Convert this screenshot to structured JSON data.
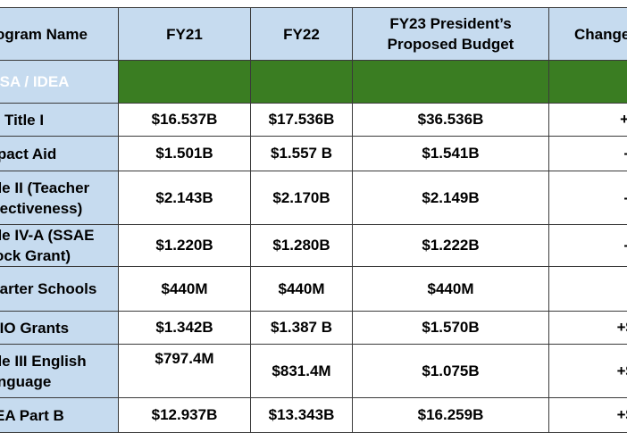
{
  "header": {
    "name": "Program Name",
    "fy21": "FY21",
    "fy22": "FY22",
    "fy23": "FY23 President’s Proposed Budget",
    "change": "Change"
  },
  "section": {
    "label": "ESSA / IDEA"
  },
  "rows": [
    {
      "name": "Title I",
      "fy21": "$16.537B",
      "fy22": "$17.536B",
      "fy23": "$36.536B",
      "change": "+"
    },
    {
      "name": "Impact Aid",
      "fy21": "$1.501B",
      "fy22": "$1.557 B",
      "fy23": "$1.541B",
      "change": "-"
    },
    {
      "name": "Title II (Teacher Effectiveness)",
      "fy21": "$2.143B",
      "fy22": "$2.170B",
      "fy23": "$2.149B",
      "change": "-"
    },
    {
      "name": "Title IV-A (SSAE Block Grant)",
      "fy21": "$1.220B",
      "fy22": "$1.280B",
      "fy23": "$1.222B",
      "change": "-"
    },
    {
      "name": "Charter Schools",
      "fy21": "$440M",
      "fy22": "$440M",
      "fy23": "$440M",
      "change": ""
    },
    {
      "name": "TRIO Grants",
      "fy21": "$1.342B",
      "fy22": "$1.387 B",
      "fy23": "$1.570B",
      "change": "+$"
    },
    {
      "name": "Title III English Language",
      "fy21": "$797.4M",
      "fy22": "$831.4M",
      "fy23": "$1.075B",
      "change": "+$"
    },
    {
      "name": "IDEA Part B",
      "fy21": "$12.937B",
      "fy22": "$13.343B",
      "fy23": "$16.259B",
      "change": "+$"
    }
  ]
}
